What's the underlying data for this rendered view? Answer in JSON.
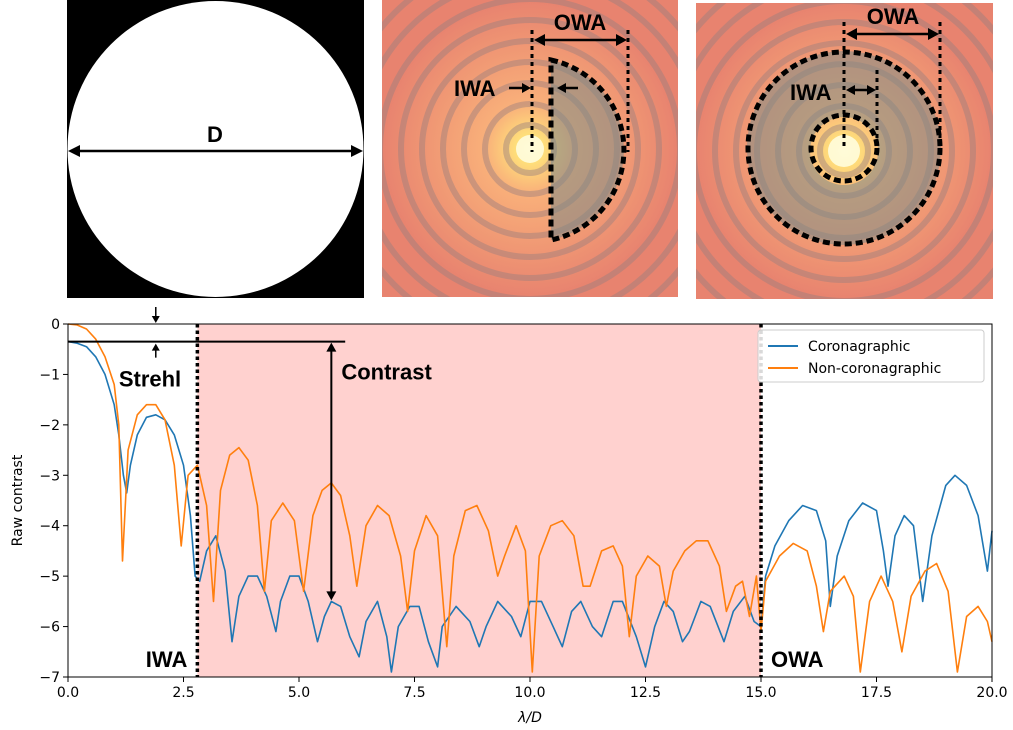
{
  "panels": {
    "pupil": {
      "label": "D"
    },
    "half_dark_hole": {
      "iwa_label": "IWA",
      "owa_label": "OWA"
    },
    "annular_dark_hole": {
      "iwa_label": "IWA",
      "owa_label": "OWA"
    }
  },
  "annotations": {
    "strehl": "Strehl",
    "contrast": "Contrast",
    "iwa": "IWA",
    "owa": "OWA"
  },
  "colors": {
    "coronagraphic": "#1f77b4",
    "non_coronagraphic": "#ff7f0e",
    "dark_hole_shade": "#ffd1cf"
  },
  "chart_data": {
    "type": "line",
    "title": "",
    "xlabel": "λ/D",
    "ylabel": "Raw contrast",
    "xlim": [
      0,
      20
    ],
    "ylim": [
      -7,
      0
    ],
    "xticks": [
      0.0,
      2.5,
      5.0,
      7.5,
      10.0,
      12.5,
      15.0,
      17.5,
      20.0
    ],
    "xtick_labels": [
      "0.0",
      "2.5",
      "5.0",
      "7.5",
      "10.0",
      "12.5",
      "15.0",
      "17.5",
      "20.0"
    ],
    "yticks": [
      0,
      -1,
      -2,
      -3,
      -4,
      -5,
      -6,
      -7
    ],
    "ytick_labels": [
      "0",
      "−1",
      "−2",
      "−3",
      "−4",
      "−5",
      "−6",
      "−7"
    ],
    "legend_position": "top-right",
    "shaded_region": {
      "x_from": 2.8,
      "x_to": 15.0
    },
    "vlines": [
      2.8,
      15.0
    ],
    "strehl_level": -0.35,
    "contrast_arrow": {
      "x": 5.7,
      "y_from": -0.35,
      "y_to": -5.5
    },
    "series": [
      {
        "name": "Coronagraphic",
        "points": [
          [
            0.0,
            -0.35
          ],
          [
            0.2,
            -0.38
          ],
          [
            0.4,
            -0.45
          ],
          [
            0.6,
            -0.65
          ],
          [
            0.8,
            -1.0
          ],
          [
            1.0,
            -1.6
          ],
          [
            1.1,
            -2.2
          ],
          [
            1.2,
            -3.0
          ],
          [
            1.27,
            -3.35
          ],
          [
            1.35,
            -2.8
          ],
          [
            1.5,
            -2.2
          ],
          [
            1.7,
            -1.85
          ],
          [
            1.9,
            -1.8
          ],
          [
            2.1,
            -1.9
          ],
          [
            2.3,
            -2.2
          ],
          [
            2.5,
            -2.8
          ],
          [
            2.65,
            -3.8
          ],
          [
            2.75,
            -5.0
          ],
          [
            2.85,
            -5.1
          ],
          [
            3.0,
            -4.5
          ],
          [
            3.2,
            -4.2
          ],
          [
            3.4,
            -4.9
          ],
          [
            3.55,
            -6.3
          ],
          [
            3.7,
            -5.4
          ],
          [
            3.9,
            -5.0
          ],
          [
            4.1,
            -5.0
          ],
          [
            4.3,
            -5.4
          ],
          [
            4.5,
            -6.1
          ],
          [
            4.6,
            -5.5
          ],
          [
            4.8,
            -5.0
          ],
          [
            5.0,
            -5.0
          ],
          [
            5.2,
            -5.5
          ],
          [
            5.4,
            -6.3
          ],
          [
            5.55,
            -5.8
          ],
          [
            5.7,
            -5.5
          ],
          [
            5.9,
            -5.6
          ],
          [
            6.1,
            -6.2
          ],
          [
            6.3,
            -6.6
          ],
          [
            6.45,
            -5.9
          ],
          [
            6.7,
            -5.5
          ],
          [
            6.9,
            -6.2
          ],
          [
            7.0,
            -6.9
          ],
          [
            7.15,
            -6.0
          ],
          [
            7.4,
            -5.6
          ],
          [
            7.6,
            -5.6
          ],
          [
            7.8,
            -6.3
          ],
          [
            8.0,
            -6.8
          ],
          [
            8.1,
            -6.0
          ],
          [
            8.4,
            -5.6
          ],
          [
            8.7,
            -5.9
          ],
          [
            8.9,
            -6.4
          ],
          [
            9.05,
            -6.0
          ],
          [
            9.3,
            -5.5
          ],
          [
            9.6,
            -5.8
          ],
          [
            9.8,
            -6.2
          ],
          [
            10.0,
            -5.5
          ],
          [
            10.25,
            -5.5
          ],
          [
            10.5,
            -6.0
          ],
          [
            10.7,
            -6.4
          ],
          [
            10.9,
            -5.7
          ],
          [
            11.1,
            -5.5
          ],
          [
            11.35,
            -6.0
          ],
          [
            11.55,
            -6.2
          ],
          [
            11.8,
            -5.5
          ],
          [
            12.0,
            -5.5
          ],
          [
            12.3,
            -6.2
          ],
          [
            12.5,
            -6.8
          ],
          [
            12.7,
            -6.0
          ],
          [
            12.9,
            -5.5
          ],
          [
            13.1,
            -5.7
          ],
          [
            13.3,
            -6.3
          ],
          [
            13.45,
            -6.1
          ],
          [
            13.7,
            -5.5
          ],
          [
            13.9,
            -5.6
          ],
          [
            14.2,
            -6.3
          ],
          [
            14.4,
            -5.7
          ],
          [
            14.65,
            -5.4
          ],
          [
            14.85,
            -5.9
          ],
          [
            15.0,
            -6.0
          ],
          [
            15.1,
            -5.0
          ],
          [
            15.3,
            -4.4
          ],
          [
            15.6,
            -3.9
          ],
          [
            15.9,
            -3.6
          ],
          [
            16.2,
            -3.7
          ],
          [
            16.4,
            -4.3
          ],
          [
            16.5,
            -5.6
          ],
          [
            16.65,
            -4.6
          ],
          [
            16.9,
            -3.9
          ],
          [
            17.2,
            -3.55
          ],
          [
            17.5,
            -3.7
          ],
          [
            17.65,
            -4.5
          ],
          [
            17.75,
            -5.2
          ],
          [
            17.9,
            -4.2
          ],
          [
            18.1,
            -3.8
          ],
          [
            18.3,
            -4.0
          ],
          [
            18.5,
            -5.5
          ],
          [
            18.7,
            -4.2
          ],
          [
            19.0,
            -3.2
          ],
          [
            19.2,
            -3.0
          ],
          [
            19.45,
            -3.2
          ],
          [
            19.7,
            -3.8
          ],
          [
            19.9,
            -4.9
          ],
          [
            20.0,
            -4.1
          ]
        ]
      },
      {
        "name": "Non-coronagraphic",
        "points": [
          [
            0.0,
            0.0
          ],
          [
            0.2,
            -0.02
          ],
          [
            0.4,
            -0.1
          ],
          [
            0.6,
            -0.3
          ],
          [
            0.8,
            -0.65
          ],
          [
            1.0,
            -1.2
          ],
          [
            1.1,
            -2.0
          ],
          [
            1.18,
            -4.7
          ],
          [
            1.3,
            -2.5
          ],
          [
            1.5,
            -1.8
          ],
          [
            1.7,
            -1.6
          ],
          [
            1.9,
            -1.6
          ],
          [
            2.1,
            -1.9
          ],
          [
            2.3,
            -2.8
          ],
          [
            2.45,
            -4.4
          ],
          [
            2.6,
            -3.0
          ],
          [
            2.8,
            -2.8
          ],
          [
            3.0,
            -3.6
          ],
          [
            3.15,
            -5.5
          ],
          [
            3.3,
            -3.3
          ],
          [
            3.5,
            -2.6
          ],
          [
            3.7,
            -2.45
          ],
          [
            3.9,
            -2.7
          ],
          [
            4.1,
            -3.6
          ],
          [
            4.25,
            -5.3
          ],
          [
            4.4,
            -3.9
          ],
          [
            4.65,
            -3.55
          ],
          [
            4.9,
            -3.9
          ],
          [
            5.1,
            -5.3
          ],
          [
            5.3,
            -3.8
          ],
          [
            5.5,
            -3.3
          ],
          [
            5.7,
            -3.15
          ],
          [
            5.9,
            -3.4
          ],
          [
            6.1,
            -4.2
          ],
          [
            6.25,
            -5.2
          ],
          [
            6.45,
            -4.0
          ],
          [
            6.7,
            -3.6
          ],
          [
            6.95,
            -3.8
          ],
          [
            7.2,
            -4.6
          ],
          [
            7.35,
            -5.7
          ],
          [
            7.5,
            -4.5
          ],
          [
            7.75,
            -3.8
          ],
          [
            8.0,
            -4.2
          ],
          [
            8.2,
            -6.4
          ],
          [
            8.35,
            -4.6
          ],
          [
            8.6,
            -3.7
          ],
          [
            8.85,
            -3.6
          ],
          [
            9.1,
            -4.1
          ],
          [
            9.3,
            -5.0
          ],
          [
            9.45,
            -4.6
          ],
          [
            9.7,
            -4.0
          ],
          [
            9.9,
            -4.5
          ],
          [
            10.05,
            -6.9
          ],
          [
            10.2,
            -4.6
          ],
          [
            10.45,
            -4.0
          ],
          [
            10.7,
            -3.9
          ],
          [
            10.95,
            -4.2
          ],
          [
            11.15,
            -5.2
          ],
          [
            11.3,
            -5.2
          ],
          [
            11.55,
            -4.5
          ],
          [
            11.8,
            -4.4
          ],
          [
            12.0,
            -4.8
          ],
          [
            12.15,
            -6.2
          ],
          [
            12.3,
            -5.0
          ],
          [
            12.55,
            -4.6
          ],
          [
            12.8,
            -4.8
          ],
          [
            12.95,
            -5.6
          ],
          [
            13.1,
            -4.9
          ],
          [
            13.35,
            -4.5
          ],
          [
            13.6,
            -4.3
          ],
          [
            13.85,
            -4.3
          ],
          [
            14.1,
            -4.8
          ],
          [
            14.25,
            -5.7
          ],
          [
            14.45,
            -5.2
          ],
          [
            14.6,
            -5.1
          ],
          [
            14.75,
            -5.8
          ],
          [
            14.9,
            -5.0
          ],
          [
            15.0,
            -6.1
          ],
          [
            15.1,
            -5.1
          ],
          [
            15.4,
            -4.6
          ],
          [
            15.7,
            -4.35
          ],
          [
            16.0,
            -4.5
          ],
          [
            16.2,
            -5.2
          ],
          [
            16.35,
            -6.1
          ],
          [
            16.5,
            -5.3
          ],
          [
            16.8,
            -5.0
          ],
          [
            17.0,
            -5.4
          ],
          [
            17.15,
            -6.9
          ],
          [
            17.35,
            -5.5
          ],
          [
            17.6,
            -5.0
          ],
          [
            17.85,
            -5.5
          ],
          [
            18.05,
            -6.5
          ],
          [
            18.25,
            -5.4
          ],
          [
            18.55,
            -4.9
          ],
          [
            18.8,
            -4.75
          ],
          [
            19.05,
            -5.3
          ],
          [
            19.25,
            -6.9
          ],
          [
            19.45,
            -5.8
          ],
          [
            19.7,
            -5.6
          ],
          [
            19.9,
            -5.9
          ],
          [
            20.0,
            -6.3
          ]
        ]
      }
    ]
  }
}
